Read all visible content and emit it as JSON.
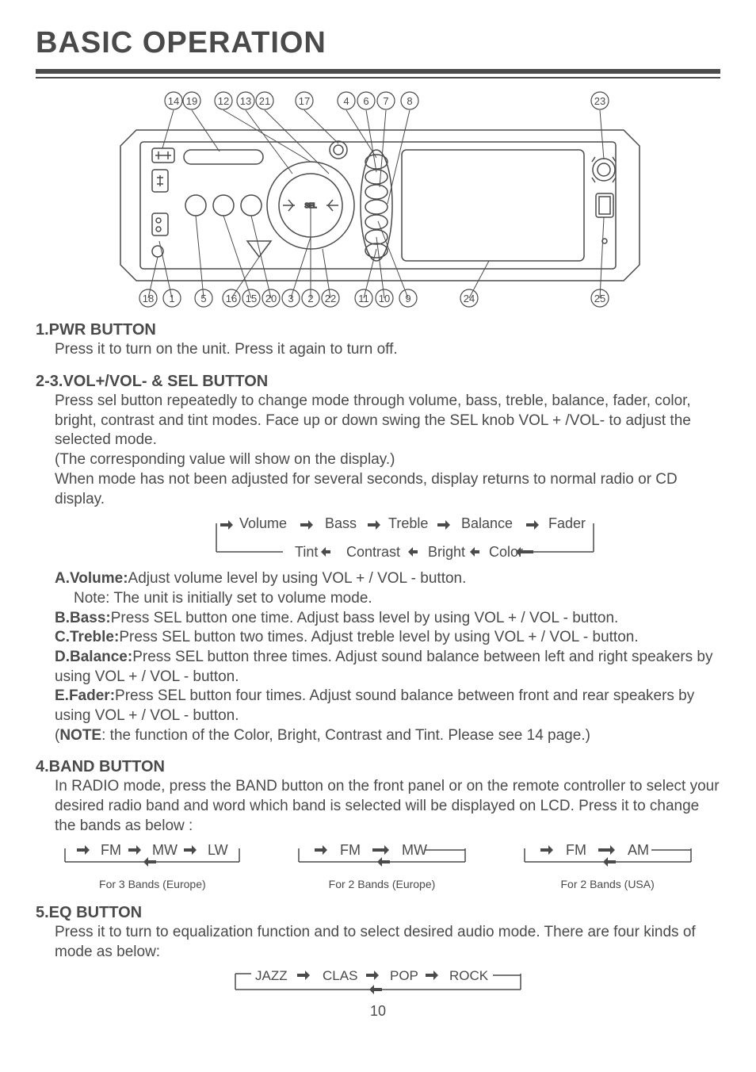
{
  "title": "BASIC OPERATION",
  "diagram": {
    "top_numbers": [
      "14",
      "19",
      "12",
      "13",
      "21",
      "17",
      "4",
      "6",
      "7",
      "8",
      "23"
    ],
    "bottom_numbers": [
      "18",
      "1",
      "5",
      "16",
      "15",
      "20",
      "3",
      "2",
      "22",
      "11",
      "10",
      "9",
      "24",
      "25"
    ]
  },
  "sections": {
    "s1": {
      "head": "1.PWR BUTTON",
      "body": "Press it  to turn on the unit.  Press it again to turn off."
    },
    "s2": {
      "head": "2-3.VOL+/VOL- & SEL BUTTON",
      "body_p1": "Press sel button repeatedly to change  mode through volume, bass, treble, balance, fader, color, bright, contrast and tint  modes. Face up or down swing the SEL knob VOL + /VOL- to adjust the selected mode.",
      "body_p2": "(The corresponding value will show on the display.)",
      "body_p3": "When mode has not been adjusted for several seconds, display returns to normal radio or CD display.",
      "flow_top": [
        "Volume",
        "Bass",
        "Treble",
        "Balance",
        "Fader"
      ],
      "flow_bottom": [
        "Tint",
        "Contrast",
        "Bright",
        "Color"
      ],
      "A": {
        "label": "A.Volume:",
        "text": "Adjust volume level by using VOL + / VOL - button.",
        "note": "Note:  The unit is initially set to volume mode."
      },
      "B": {
        "label": "B.Bass:",
        "text": "Press SEL button  one time.  Adjust bass level by using VOL + / VOL - button."
      },
      "C": {
        "label": "C.Treble:",
        "text": "Press SEL button  two times.  Adjust treble level by using VOL + / VOL - button."
      },
      "D": {
        "label": "D.Balance:",
        "text": "Press SEL button  three times.  Adjust sound balance between left and right speakers by using VOL + / VOL - button."
      },
      "E": {
        "label": "E.Fader:",
        "text": "Press SEL button  four times.  Adjust sound balance between front and rear speakers by using VOL + / VOL - button."
      },
      "note_label": "NOTE",
      "note_text": ": the function of the Color, Bright, Contrast and Tint. Please see 14 page.)"
    },
    "s4": {
      "head": "4.BAND BUTTON",
      "body": "In RADIO mode, press the BAND button on the front panel or on  the remote controller  to select your desired radio band and word which band is selected will be displayed on LCD. Press it to change the bands as below :",
      "band1": {
        "labels": [
          "FM",
          "MW",
          "LW"
        ],
        "caption": "For 3 Bands (Europe)"
      },
      "band2": {
        "labels": [
          "FM",
          "MW"
        ],
        "caption": "For 2 Bands (Europe)"
      },
      "band3": {
        "labels": [
          "FM",
          "AM"
        ],
        "caption": "For 2 Bands (USA)"
      }
    },
    "s5": {
      "head": "5.EQ BUTTON",
      "body": "Press it  to turn to equalization function and to select desired audio mode. There are four kinds of mode as below:",
      "flow": [
        "JAZZ",
        "CLAS",
        "POP",
        "ROCK"
      ]
    }
  },
  "page_number": "10",
  "colors": {
    "text": "#4a4a4a",
    "stroke": "#4a4a4a"
  }
}
